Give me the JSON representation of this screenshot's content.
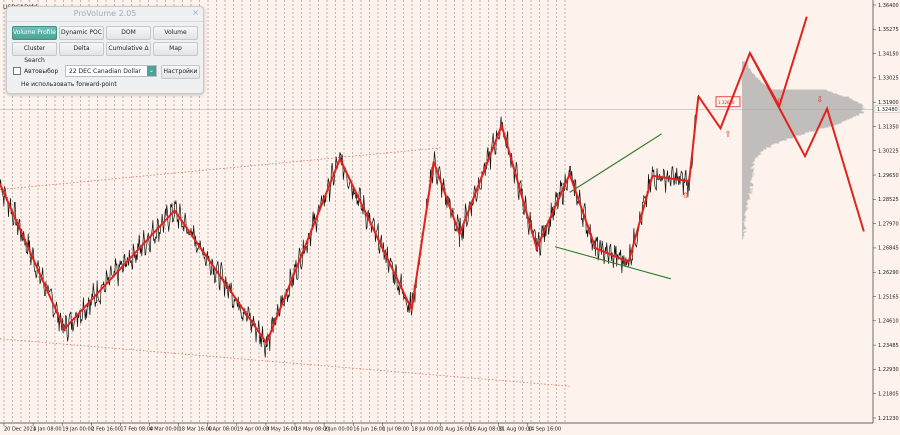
{
  "chart_data": {
    "type": "line",
    "symbol": "USDCADrfd",
    "xlabel": "",
    "ylabel": "",
    "ylim": [
      1.2123,
      1.364
    ],
    "grid": true,
    "y_ticks": [
      "1.36400",
      "1.35275",
      "1.34150",
      "1.33025",
      "1.31900",
      "1.31350",
      "1.30225",
      "1.29650",
      "1.28525",
      "1.27970",
      "1.26845",
      "1.26290",
      "1.25165",
      "1.24610",
      "1.23485",
      "1.22930",
      "1.21805",
      "1.21230"
    ],
    "current_price": "1.32480",
    "x_ticks": [
      "20 Dec 2021",
      "4 Jan 08:00",
      "19 Jan 00:00",
      "2 Feb 16:00",
      "17 Feb 08:00",
      "4 Mar 00:00",
      "18 Mar 16:00",
      "4 Apr 08:00",
      "19 Apr 00:00",
      "3 May 16:00",
      "18 May 08:00",
      "2 Jun 00:00",
      "16 Jun 16:00",
      "1 Jul 08:00",
      "18 Jul 00:00",
      "1 Aug 16:00",
      "16 Aug 08:00",
      "31 Aug 00:00",
      "14 Sep 16:00"
    ],
    "zigzag": [
      [
        0,
        1.298
      ],
      [
        3.5,
        1.246
      ],
      [
        9.5,
        1.2885
      ],
      [
        14.5,
        1.241
      ],
      [
        18.5,
        1.307
      ],
      [
        22.4,
        1.253
      ],
      [
        23.6,
        1.306
      ],
      [
        25.0,
        1.28
      ],
      [
        27.3,
        1.319
      ],
      [
        29.2,
        1.275
      ],
      [
        31.0,
        1.3015
      ],
      [
        32.4,
        1.275
      ],
      [
        34.2,
        1.27
      ],
      [
        35.5,
        1.301
      ],
      [
        37.5,
        1.299
      ],
      [
        38.0,
        1.3295
      ]
    ],
    "forecast": [
      [
        38.0,
        1.3295
      ],
      [
        39.2,
        1.318
      ],
      [
        40.8,
        1.345
      ],
      [
        42.4,
        1.326
      ],
      [
        43.9,
        1.358
      ],
      [
        40.8,
        1.345
      ],
      [
        42.5,
        1.324
      ],
      [
        43.8,
        1.308
      ],
      [
        45.0,
        1.325
      ],
      [
        47.0,
        1.281
      ]
    ],
    "markers": [
      {
        "x": 37.3,
        "y": 1.293,
        "label": "⇧"
      },
      {
        "x": 39.6,
        "y": 1.315,
        "label": "⇧"
      },
      {
        "x": 42.4,
        "y": 1.3265,
        "label": "⇩"
      },
      {
        "x": 44.6,
        "y": 1.3275,
        "label": "⇩"
      }
    ],
    "channels": [
      {
        "color": "#e07060",
        "style": "dotted",
        "points": [
          [
            0,
            1.296
          ],
          [
            24.0,
            1.311
          ]
        ]
      },
      {
        "color": "#e07060",
        "style": "dotted",
        "points": [
          [
            0,
            1.2425
          ],
          [
            31.0,
            1.2255
          ]
        ]
      },
      {
        "color": "#2f7a2a",
        "style": "solid",
        "points": [
          [
            31.0,
            1.295
          ],
          [
            36.0,
            1.316
          ]
        ]
      },
      {
        "color": "#2f7a2a",
        "style": "solid",
        "points": [
          [
            30.2,
            1.2755
          ],
          [
            36.5,
            1.264
          ]
        ]
      }
    ],
    "volume_profile_label": "1.32600"
  },
  "panel": {
    "title": "ProVolume 2.05",
    "close": "×",
    "buttons": [
      {
        "label": "Volume Profile",
        "active": true
      },
      {
        "label": "Dynamic POC",
        "active": false
      },
      {
        "label": "DOM",
        "active": false
      },
      {
        "label": "Volume",
        "active": false
      },
      {
        "label": "Cluster Search",
        "active": false
      },
      {
        "label": "Delta",
        "active": false
      },
      {
        "label": "Cumulative Δ",
        "active": false
      },
      {
        "label": "Map",
        "active": false
      }
    ],
    "auto_select_label": "Автовыбор",
    "symbol_value": "22 DEC Canadian Dollar",
    "select_arrow": "⌄",
    "settings_label": "Настройки",
    "forward_point_label": "Не использовать forward-point"
  }
}
